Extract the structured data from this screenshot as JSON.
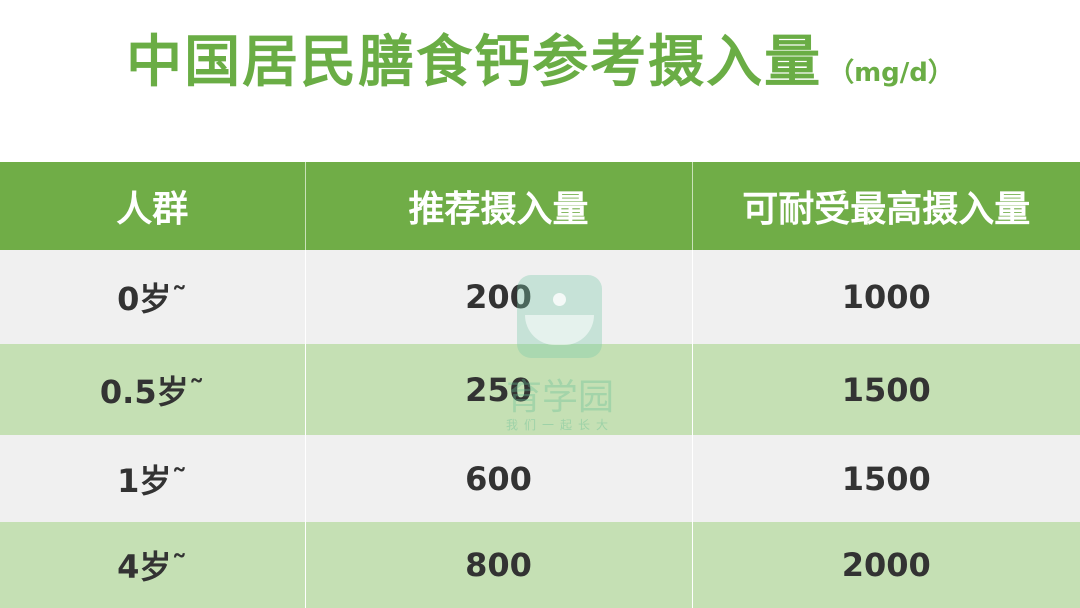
{
  "title": "中国居民膳食钙参考摄入量",
  "unit": "（mg/d）",
  "table": {
    "headers": [
      "人群",
      "推荐摄入量",
      "可耐受最高摄入量"
    ],
    "rows": [
      [
        "0岁˜",
        "200",
        "1000"
      ],
      [
        "0.5岁˜",
        "250",
        "1500"
      ],
      [
        "1岁˜",
        "600",
        "1500"
      ],
      [
        "4岁˜",
        "800",
        "2000"
      ]
    ]
  },
  "watermark": {
    "name": "育学园",
    "slogan": "我们一起长大"
  },
  "colors": {
    "title": "#6aad45",
    "header": "#70ad47",
    "row_light": "#f0f0f0",
    "row_green": "#c5e0b4"
  }
}
